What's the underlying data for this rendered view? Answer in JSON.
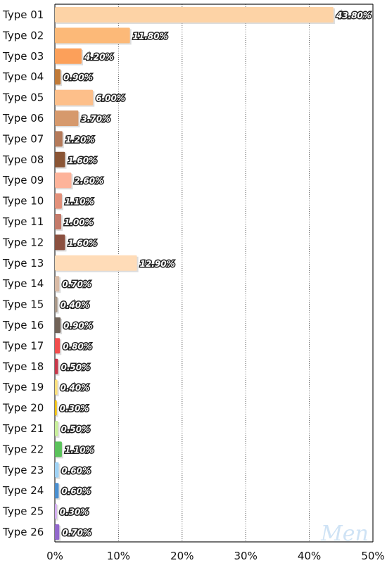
{
  "chart_data": {
    "type": "bar",
    "orientation": "horizontal",
    "categories": [
      "Type 01",
      "Type 02",
      "Type 03",
      "Type 04",
      "Type 05",
      "Type 06",
      "Type 07",
      "Type 08",
      "Type 09",
      "Type 10",
      "Type 11",
      "Type 12",
      "Type 13",
      "Type 14",
      "Type 15",
      "Type 16",
      "Type 17",
      "Type 18",
      "Type 19",
      "Type 20",
      "Type 21",
      "Type 22",
      "Type 23",
      "Type 24",
      "Type 25",
      "Type 26"
    ],
    "values": [
      43.8,
      11.8,
      4.2,
      0.9,
      6.0,
      3.7,
      1.2,
      1.6,
      2.6,
      1.1,
      1.0,
      1.6,
      12.9,
      0.7,
      0.4,
      0.9,
      0.8,
      0.5,
      0.4,
      0.3,
      0.5,
      1.1,
      0.6,
      0.6,
      0.3,
      0.7
    ],
    "value_labels": [
      "43.80%",
      "11.80%",
      "4.20%",
      "0.90%",
      "6.00%",
      "3.70%",
      "1.20%",
      "1.60%",
      "2.60%",
      "1.10%",
      "1.00%",
      "1.60%",
      "12.90%",
      "0.70%",
      "0.40%",
      "0.90%",
      "0.80%",
      "0.50%",
      "0.40%",
      "0.30%",
      "0.50%",
      "1.10%",
      "0.60%",
      "0.60%",
      "0.30%",
      "0.70%"
    ],
    "colors": [
      "#fdd3a6",
      "#fcb978",
      "#fca05a",
      "#c07a38",
      "#fdbf8a",
      "#d6996c",
      "#b47a5a",
      "#8a5535",
      "#fdb39a",
      "#e2907a",
      "#c47a6a",
      "#8b5040",
      "#ffdcb8",
      "#d9bba6",
      "#a99888",
      "#716358",
      "#f24d4d",
      "#c8374a",
      "#fde07a",
      "#f3c20a",
      "#c8ef9a",
      "#5bc25b",
      "#9fd2f5",
      "#4a8fd0",
      "#d3aaf2",
      "#9268cc"
    ],
    "xlim": [
      0,
      50
    ],
    "x_ticks": [
      "0%",
      "10%",
      "20%",
      "30%",
      "40%",
      "50%"
    ],
    "grid": "vertical-dotted",
    "watermark": "Men"
  }
}
